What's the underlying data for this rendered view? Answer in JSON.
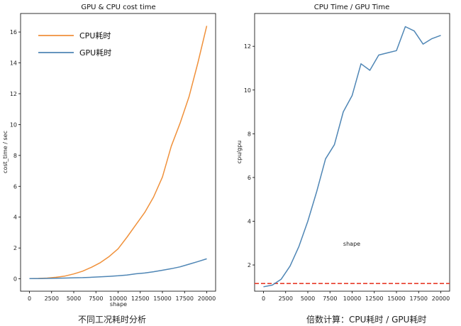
{
  "chart_data": [
    {
      "type": "line",
      "title": "GPU & CPU cost time",
      "xlabel": "shape",
      "ylabel": "cost_time / sec",
      "xlim": [
        -1000,
        21000
      ],
      "ylim": [
        -0.8,
        17.2
      ],
      "xticks": [
        0,
        2500,
        5000,
        7500,
        10000,
        12500,
        15000,
        17500,
        20000
      ],
      "yticks": [
        0,
        2,
        4,
        6,
        8,
        10,
        12,
        14,
        16
      ],
      "legend": "top-left",
      "x": [
        0,
        1000,
        2000,
        3000,
        4000,
        5000,
        6000,
        7000,
        8000,
        9000,
        10000,
        11000,
        12000,
        13000,
        14000,
        15000,
        16000,
        17000,
        18000,
        19000,
        20000
      ],
      "series": [
        {
          "name": "CPU耗时",
          "color": "#f0913b",
          "values": [
            0.02,
            0.03,
            0.05,
            0.1,
            0.18,
            0.32,
            0.5,
            0.75,
            1.05,
            1.45,
            1.95,
            2.7,
            3.5,
            4.3,
            5.3,
            6.6,
            8.6,
            10.1,
            11.8,
            14.0,
            16.4
          ]
        },
        {
          "name": "GPU耗时",
          "color": "#4f86b5",
          "values": [
            0.02,
            0.02,
            0.03,
            0.04,
            0.05,
            0.07,
            0.08,
            0.1,
            0.13,
            0.16,
            0.2,
            0.25,
            0.33,
            0.38,
            0.46,
            0.56,
            0.66,
            0.78,
            0.95,
            1.12,
            1.3
          ]
        }
      ]
    },
    {
      "type": "line",
      "title": "CPU Time / GPU Time",
      "xlabel": "shape",
      "ylabel": "cpu/gpu",
      "xlim": [
        -1000,
        21000
      ],
      "ylim": [
        0.8,
        13.5
      ],
      "xticks": [
        0,
        2500,
        5000,
        7500,
        10000,
        12500,
        15000,
        17500,
        20000
      ],
      "yticks": [
        2,
        4,
        6,
        8,
        10,
        12
      ],
      "x": [
        0,
        1000,
        2000,
        3000,
        4000,
        5000,
        6000,
        7000,
        8000,
        9000,
        10000,
        11000,
        12000,
        13000,
        14000,
        15000,
        16000,
        17000,
        18000,
        19000,
        20000
      ],
      "series": [
        {
          "name": "",
          "color": "#4f86b5",
          "values": [
            1.0,
            1.08,
            1.35,
            1.95,
            2.85,
            4.0,
            5.35,
            6.85,
            7.5,
            9.0,
            9.75,
            11.2,
            10.9,
            11.6,
            11.7,
            11.8,
            12.9,
            12.7,
            12.1,
            12.35,
            12.5
          ]
        }
      ],
      "reference_line": {
        "y": 1.15,
        "color": "#e83c2a",
        "style": "dashed"
      }
    }
  ],
  "captions": {
    "left": "不同工况耗时分析",
    "right": "倍数计算：CPU耗时 / GPU耗时"
  }
}
